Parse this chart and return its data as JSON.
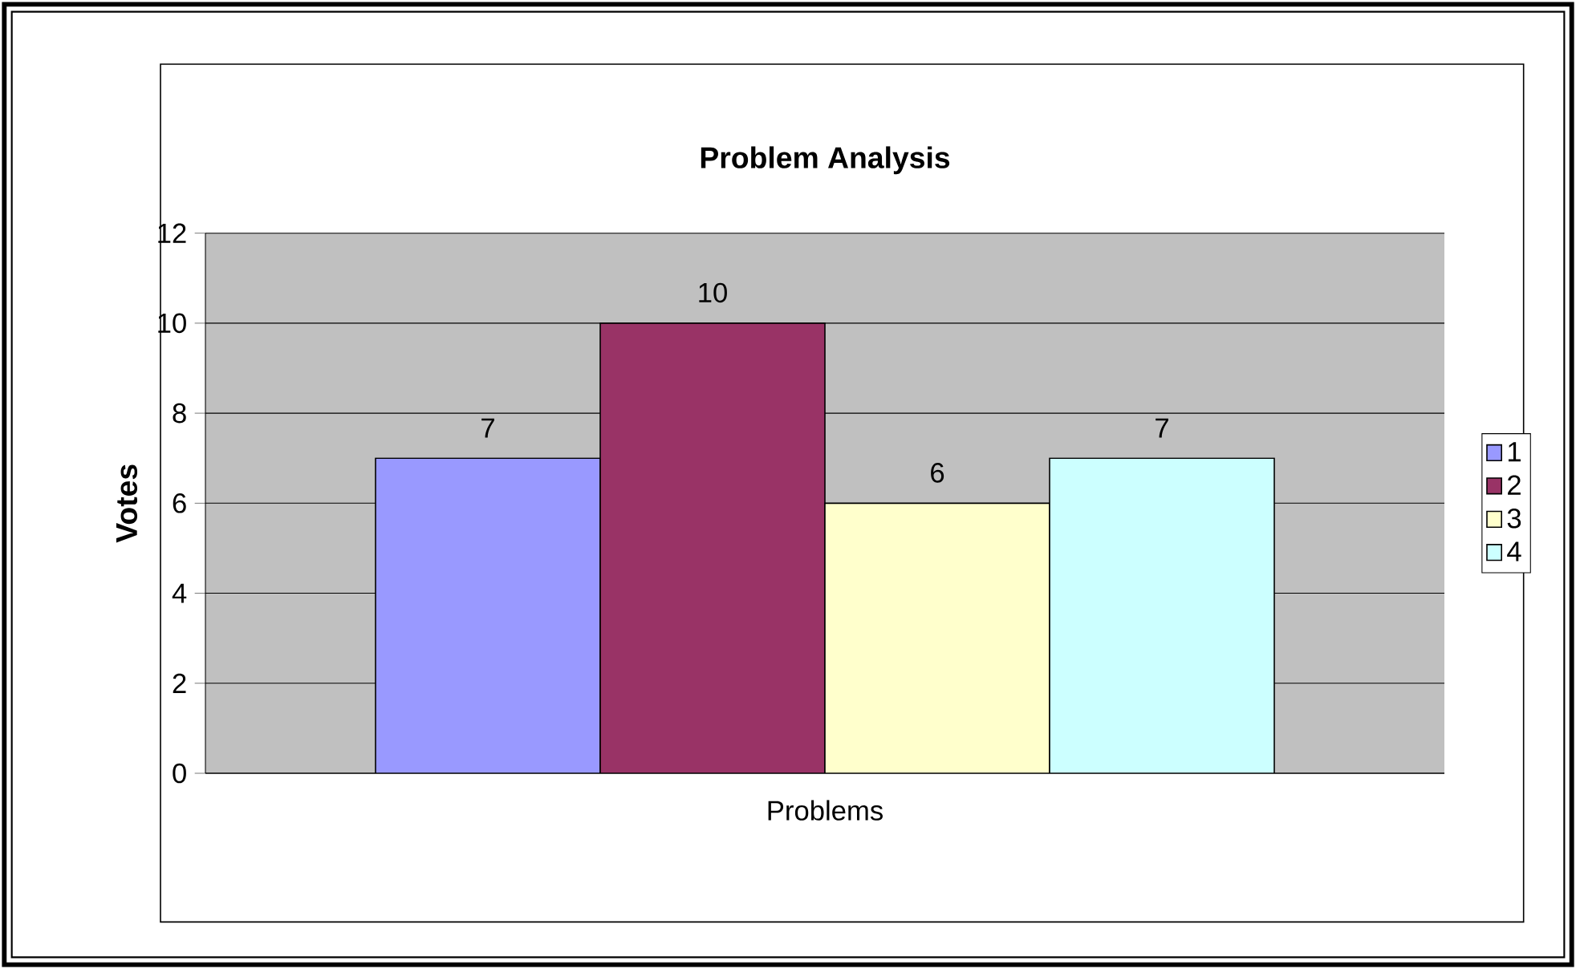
{
  "chart_data": {
    "type": "bar",
    "title": "Problem Analysis",
    "xlabel": "Problems",
    "ylabel": "Votes",
    "categories": [
      null
    ],
    "series": [
      {
        "name": "1",
        "color": "#9999ff",
        "values": [
          7
        ]
      },
      {
        "name": "2",
        "color": "#993366",
        "values": [
          10
        ]
      },
      {
        "name": "3",
        "color": "#ffffcc",
        "values": [
          6
        ]
      },
      {
        "name": "4",
        "color": "#ccffff",
        "values": [
          7
        ]
      }
    ],
    "ylim": [
      0,
      12
    ],
    "yticks": [
      0,
      2,
      4,
      6,
      8,
      10,
      12
    ],
    "grid": "y",
    "legend": "right",
    "data_labels": true
  }
}
